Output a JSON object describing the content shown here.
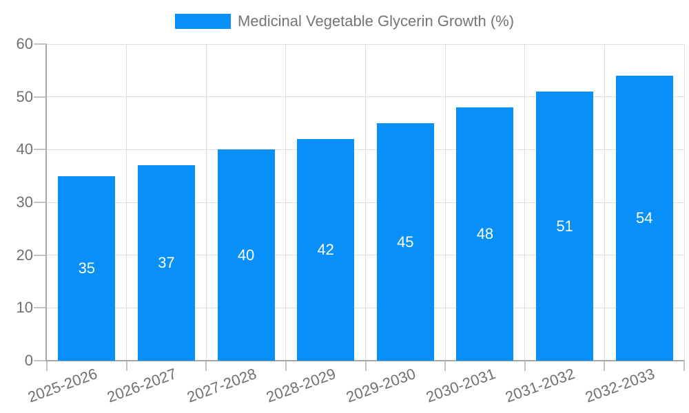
{
  "chart_data": {
    "type": "bar",
    "title": "Medicinal Vegetable Glycerin Growth (%)",
    "categories": [
      "2025-2026",
      "2026-2027",
      "2027-2028",
      "2028-2029",
      "2029-2030",
      "2030-2031",
      "2031-2032",
      "2032-2033"
    ],
    "series": [
      {
        "name": "Medicinal Vegetable Glycerin Growth (%)",
        "values": [
          35,
          37,
          40,
          42,
          45,
          48,
          51,
          54
        ]
      }
    ],
    "value_labels_shown": true,
    "xlabel": "",
    "ylabel": "",
    "ylim": [
      0,
      60
    ],
    "yticks": [
      0,
      10,
      20,
      30,
      40,
      50,
      60
    ],
    "grid": "on",
    "legend_position": "top-center",
    "x_tick_rotation_deg": -20,
    "colors": {
      "bar": "#0990f8",
      "value_label": "#ffffff",
      "axis_text": "#707070",
      "legend_text": "#757575",
      "gridline": "#dedede",
      "tick": "#c4c4c4",
      "axis_line": "#a6a6a6",
      "background": "#ffffff"
    }
  }
}
